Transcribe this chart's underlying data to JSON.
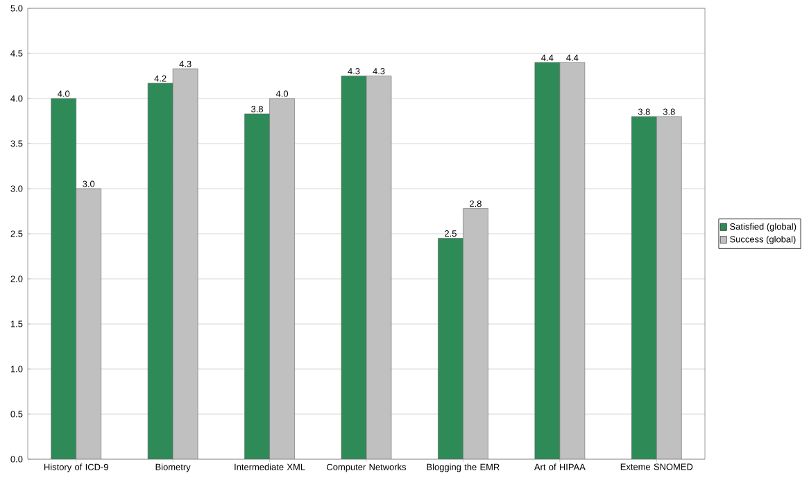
{
  "chart_data": {
    "type": "bar",
    "categories": [
      "History of ICD-9",
      "Biometry",
      "Intermediate XML",
      "Computer Networks",
      "Blogging the EMR",
      "Art of HIPAA",
      "Exteme SNOMED"
    ],
    "series": [
      {
        "name": "Satisfied (global)",
        "color": "#2e8b57",
        "values": [
          4.0,
          4.17,
          3.83,
          4.25,
          2.45,
          4.4,
          3.8
        ],
        "value_labels": [
          "4.0",
          "4.2",
          "3.8",
          "4.3",
          "2.5",
          "4.4",
          "3.8"
        ]
      },
      {
        "name": "Success (global)",
        "color": "#c0c0c0",
        "values": [
          3.0,
          4.33,
          4.0,
          4.25,
          2.78,
          4.4,
          3.8
        ],
        "value_labels": [
          "3.0",
          "4.3",
          "4.0",
          "4.3",
          "2.8",
          "4.4",
          "3.8"
        ]
      }
    ],
    "ylim": [
      0,
      5
    ],
    "yticks": [
      {
        "value": 0,
        "label": "0.0"
      },
      {
        "value": 0.5,
        "label": "0.5"
      },
      {
        "value": 1,
        "label": "1.0"
      },
      {
        "value": 1.5,
        "label": "1.5"
      },
      {
        "value": 2,
        "label": "2.0"
      },
      {
        "value": 2.5,
        "label": "2.5"
      },
      {
        "value": 3,
        "label": "3.0"
      },
      {
        "value": 3.5,
        "label": "3.5"
      },
      {
        "value": 4,
        "label": "4.0"
      },
      {
        "value": 4.5,
        "label": "4.5"
      },
      {
        "value": 5,
        "label": "5.0"
      }
    ],
    "grid": "y",
    "legend": "right"
  }
}
